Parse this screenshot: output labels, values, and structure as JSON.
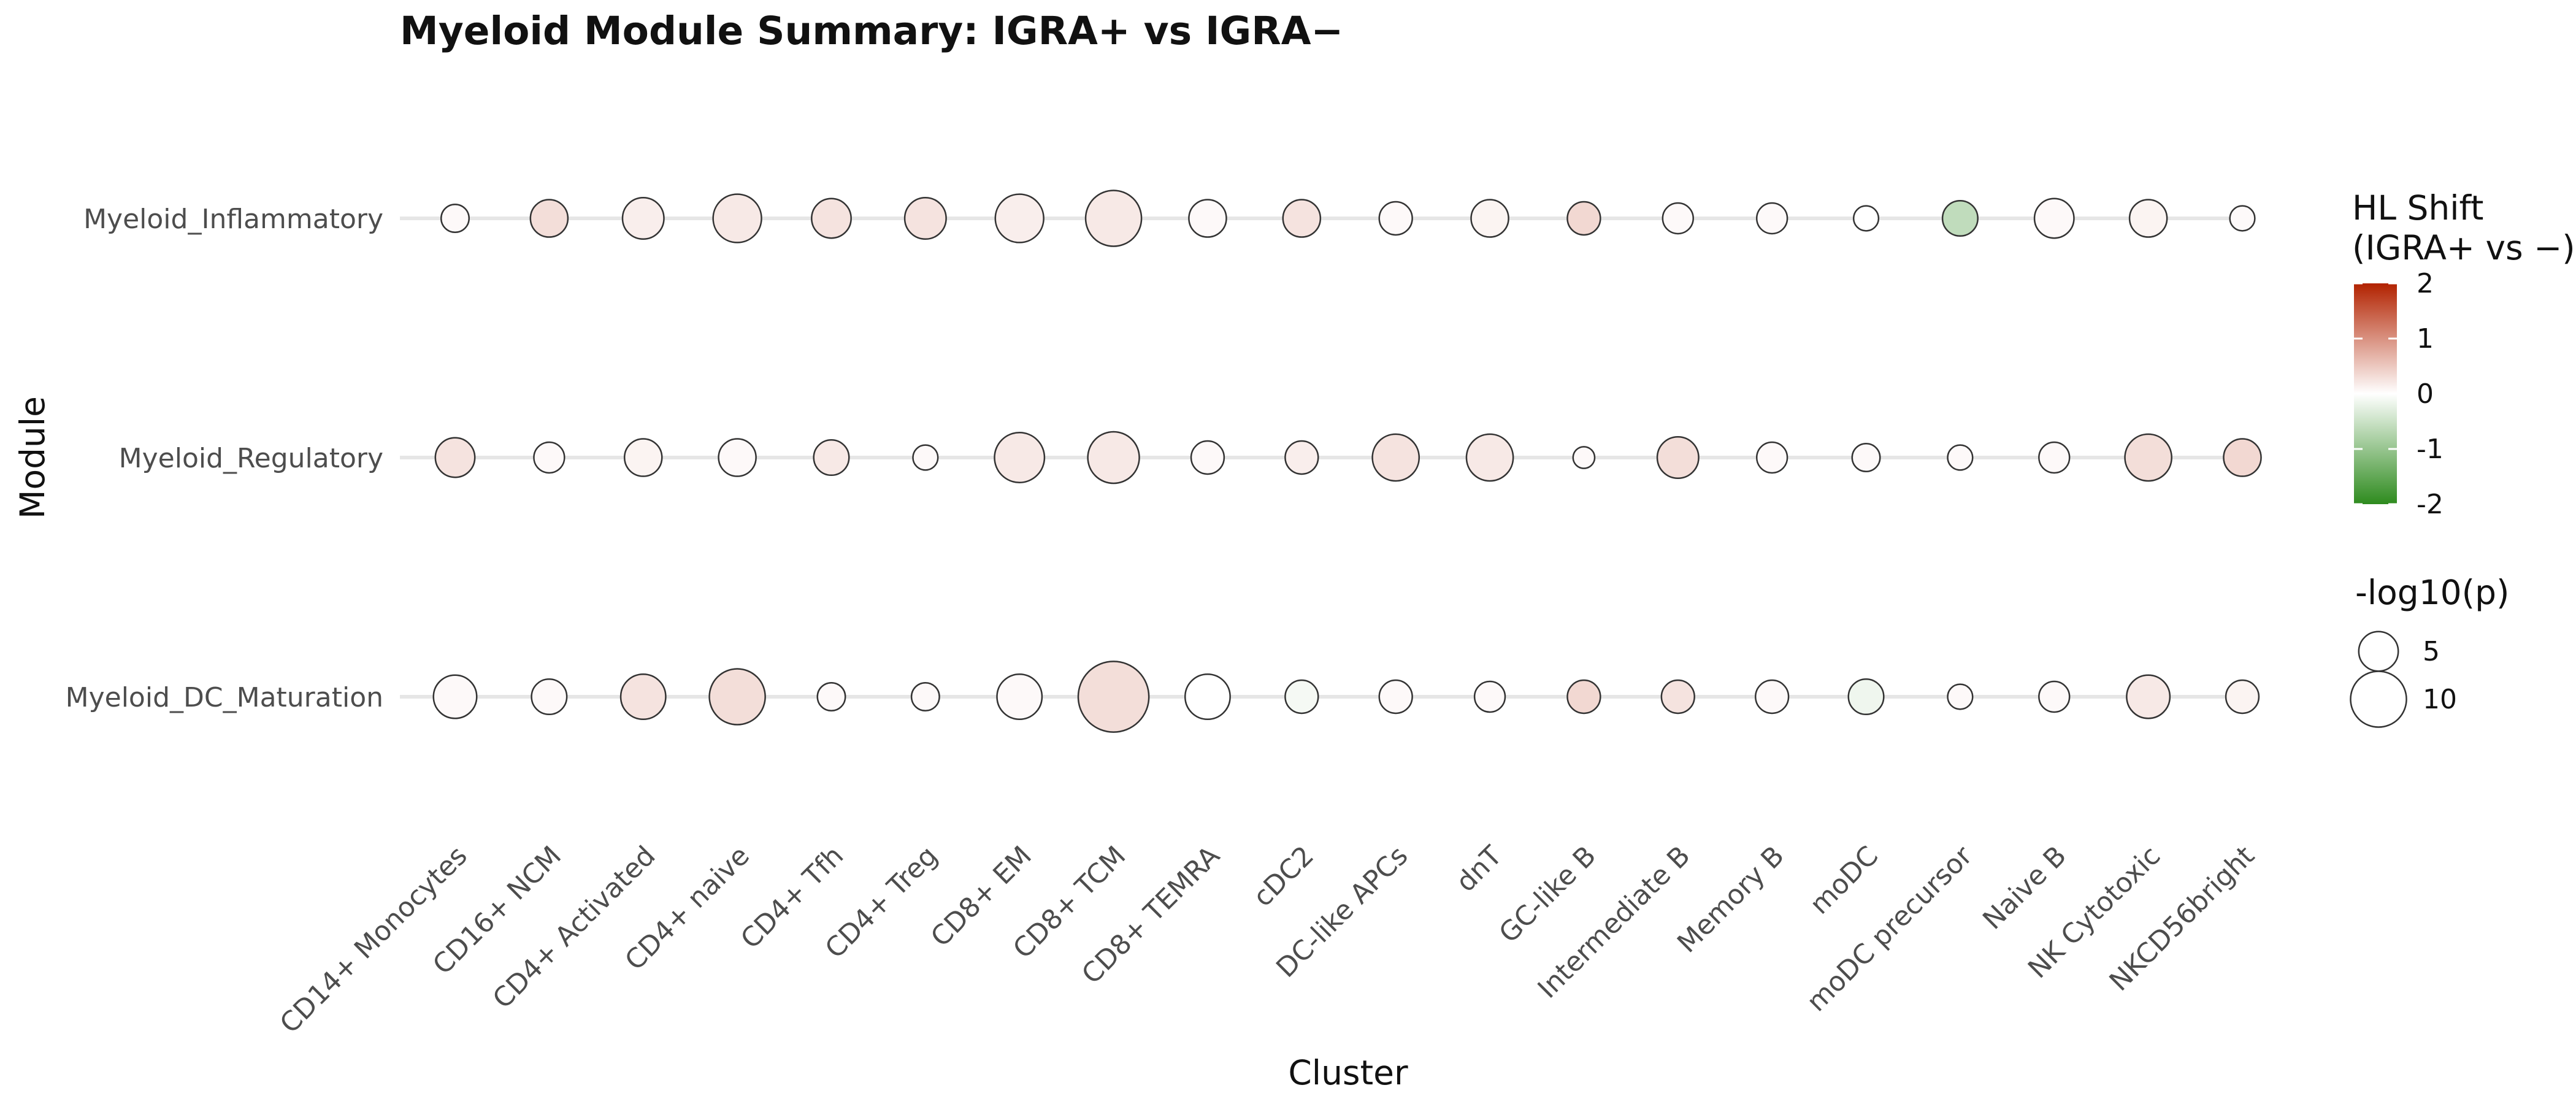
{
  "chart_data": {
    "type": "scatter",
    "title": "Myeloid Module Summary: IGRA+ vs IGRA−",
    "xlabel": "Cluster",
    "ylabel": "Module",
    "categories": [
      "CD14+ Monocytes",
      "CD16+ NCM",
      "CD4+ Activated",
      "CD4+ naive",
      "CD4+ Tfh",
      "CD4+ Treg",
      "CD8+ EM",
      "CD8+ TCM",
      "CD8+ TEMRA",
      "cDC2",
      "DC-like APCs",
      "dnT",
      "GC-like B",
      "Intermediate B",
      "Memory B",
      "moDC",
      "moDC precursor",
      "Naive B",
      "NK Cytotoxic",
      "NKCD56bright"
    ],
    "modules": [
      "Myeloid_Inflammatory",
      "Myeloid_Regulatory",
      "Myeloid_DC_Maturation"
    ],
    "series": [
      {
        "name": "Myeloid_Inflammatory",
        "hl_shift": [
          0.05,
          0.3,
          0.15,
          0.2,
          0.25,
          0.25,
          0.15,
          0.2,
          0.05,
          0.25,
          0.05,
          0.1,
          0.35,
          0.05,
          0.05,
          0.0,
          -0.6,
          0.05,
          0.1,
          0.05
        ],
        "neg_log10_p": [
          2.5,
          4.5,
          5.5,
          7.5,
          5.0,
          5.5,
          7.5,
          10.0,
          4.5,
          4.5,
          3.5,
          4.5,
          3.5,
          3.0,
          3.0,
          2.0,
          4.0,
          5.0,
          4.5,
          2.0
        ]
      },
      {
        "name": "Myeloid_Regulatory",
        "hl_shift": [
          0.25,
          0.05,
          0.1,
          0.05,
          0.2,
          0.05,
          0.2,
          0.2,
          0.05,
          0.15,
          0.25,
          0.2,
          0.05,
          0.3,
          0.05,
          0.05,
          0.05,
          0.05,
          0.3,
          0.35
        ],
        "neg_log10_p": [
          5.0,
          3.0,
          4.5,
          4.5,
          4.0,
          2.0,
          8.0,
          8.5,
          3.5,
          3.5,
          7.0,
          7.0,
          1.5,
          5.5,
          3.0,
          2.5,
          2.0,
          3.0,
          7.0,
          4.5
        ]
      },
      {
        "name": "Myeloid_DC_Maturation",
        "hl_shift": [
          0.05,
          0.05,
          0.25,
          0.3,
          0.05,
          0.05,
          0.05,
          0.3,
          0.0,
          -0.1,
          0.05,
          0.05,
          0.35,
          0.25,
          0.05,
          -0.15,
          0.05,
          0.05,
          0.2,
          0.1
        ],
        "neg_log10_p": [
          6.0,
          4.0,
          6.5,
          10.0,
          2.5,
          2.5,
          6.5,
          16.0,
          6.5,
          3.5,
          3.5,
          3.0,
          3.5,
          3.5,
          3.5,
          4.0,
          2.0,
          3.0,
          6.0,
          3.5
        ]
      }
    ],
    "color_scale": {
      "title_line1": "HL Shift",
      "title_line2": "(IGRA+ vs −)",
      "ticks": [
        "2",
        "1",
        "0",
        "-1",
        "-2"
      ],
      "tick_values": [
        2,
        1,
        0,
        -1,
        -2
      ],
      "limits": [
        -2,
        2
      ],
      "high_color": "#b22200",
      "mid_color": "#ffffff",
      "low_color": "#2e8b1e"
    },
    "size_scale": {
      "title": "-log10(p)",
      "breaks": [
        5,
        10
      ],
      "labels": [
        "5",
        "10"
      ]
    },
    "grid": "major-horizontal",
    "legend_position": "right"
  }
}
